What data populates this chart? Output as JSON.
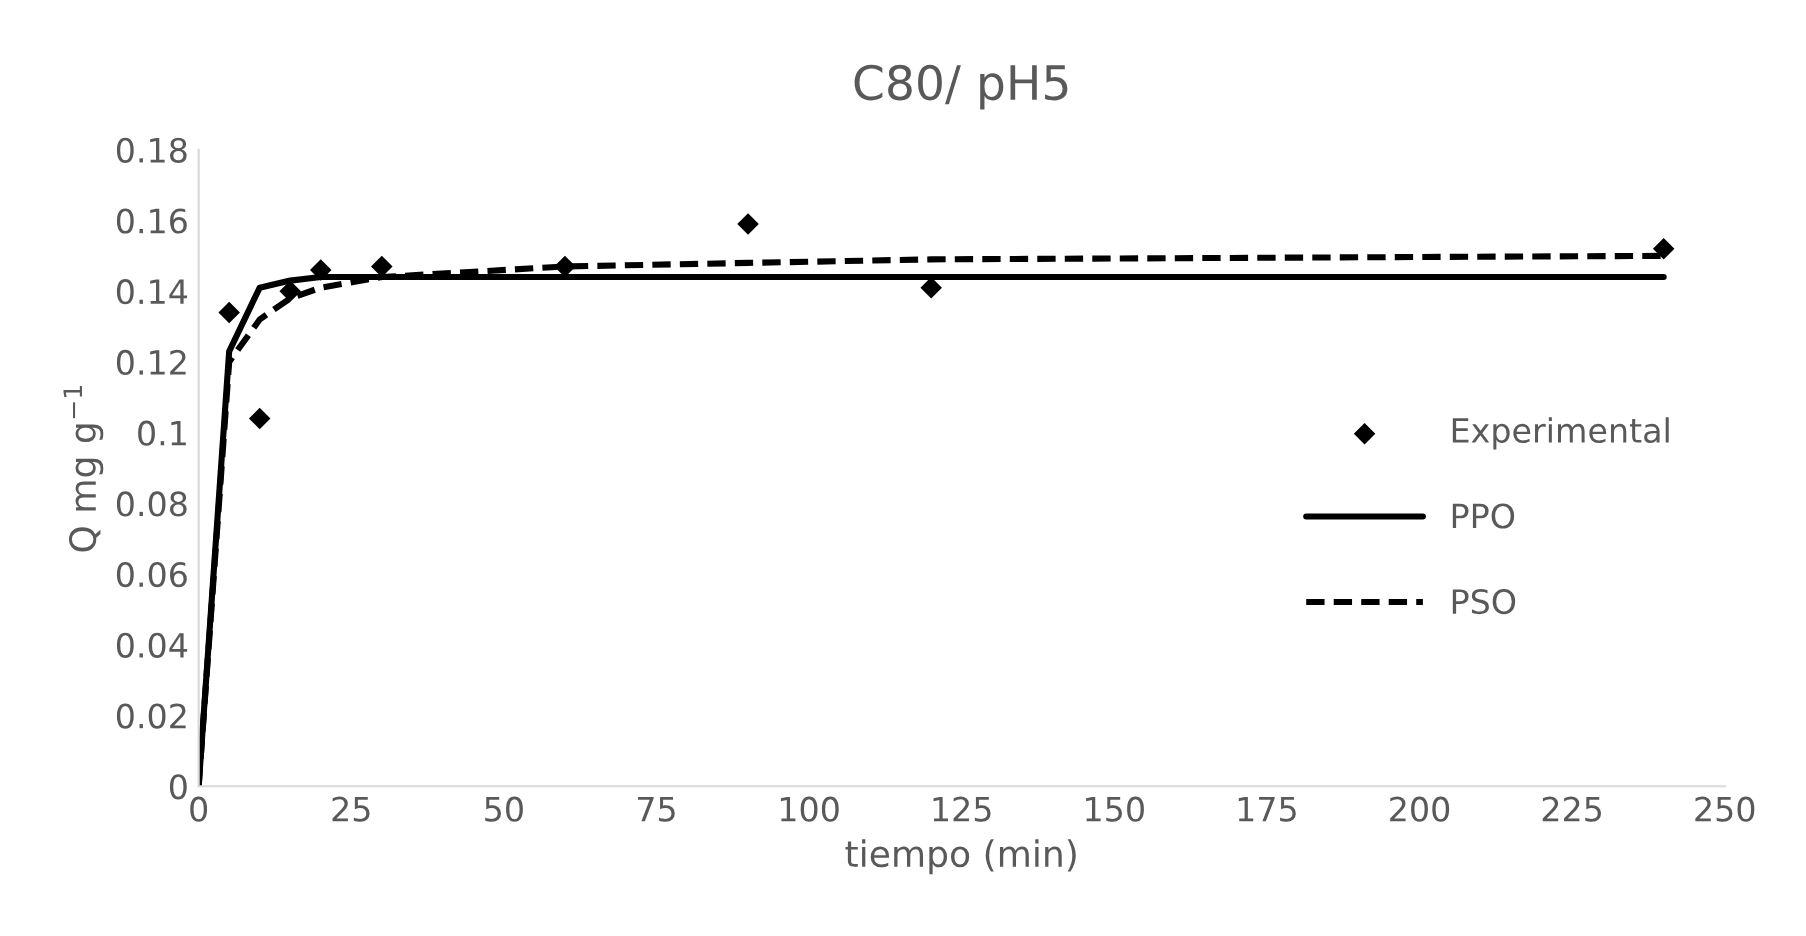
{
  "chart_data": {
    "type": "scatter",
    "title": "C80/ pH5",
    "xlabel": "tiempo (min)",
    "ylabel": "Q mg g$^{−1}$",
    "xlim": [
      0,
      250
    ],
    "xticks": [
      0,
      25,
      50,
      75,
      100,
      125,
      150,
      175,
      200,
      225,
      250
    ],
    "ylim": [
      0,
      0.18
    ],
    "yticks": [
      0,
      0.02,
      0.04,
      0.06,
      0.08,
      {
        "value": 0.1,
        "label": "0.1"
      },
      0.12,
      0.14,
      0.16,
      0.18
    ],
    "grid": false,
    "legend": "right",
    "series": [
      {
        "name": "Experimental",
        "marker": "diamond",
        "color": "#000000",
        "x": [
          5,
          10,
          15,
          20,
          30,
          60,
          90,
          120,
          240
        ],
        "values": [
          0.134,
          0.104,
          0.14,
          0.146,
          0.147,
          0.147,
          0.159,
          0.141,
          0.152
        ]
      },
      {
        "name": "PPO",
        "type": "line",
        "line_style": "solid",
        "color": "#000000",
        "x": [
          0,
          5,
          10,
          15,
          20,
          30,
          60,
          90,
          120,
          240
        ],
        "values": [
          0,
          0.123,
          0.141,
          0.143,
          0.144,
          0.144,
          0.144,
          0.144,
          0.144,
          0.144
        ]
      },
      {
        "name": "PSO",
        "type": "line",
        "line_style": "dashed",
        "color": "#000000",
        "x": [
          0,
          5,
          10,
          15,
          20,
          30,
          60,
          90,
          120,
          240
        ],
        "values": [
          0,
          0.12,
          0.132,
          0.138,
          0.141,
          0.144,
          0.147,
          0.148,
          0.149,
          0.15
        ]
      }
    ]
  }
}
